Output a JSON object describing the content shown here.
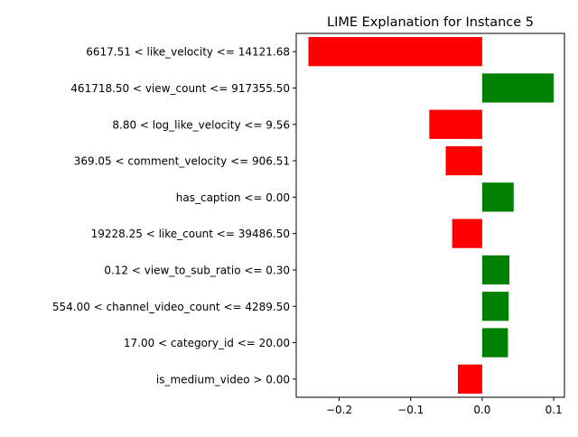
{
  "chart_data": {
    "type": "bar",
    "orientation": "horizontal",
    "title": "LIME Explanation for Instance 5",
    "xlabel": "",
    "ylabel": "",
    "xlim": [
      -0.26,
      0.115
    ],
    "xticks": [
      -0.2,
      -0.1,
      0.0,
      0.1
    ],
    "xtick_labels": [
      "−0.2",
      "−0.1",
      "0.0",
      "0.1"
    ],
    "grid": false,
    "colors": {
      "negative": "#ff0000",
      "positive": "#008000",
      "axis": "#000000",
      "text": "#000000"
    },
    "categories": [
      "6617.51 < like_velocity <= 14121.68",
      "461718.50 < view_count <= 917355.50",
      "8.80 < log_like_velocity <= 9.56",
      "369.05 < comment_velocity <= 906.51",
      "has_caption <= 0.00",
      "19228.25 < like_count <= 39486.50",
      "0.12 < view_to_sub_ratio <= 0.30",
      "554.00 < channel_video_count <= 4289.50",
      "17.00 < category_id <= 20.00",
      "is_medium_video > 0.00"
    ],
    "values": [
      -0.243,
      0.1,
      -0.074,
      -0.051,
      0.044,
      -0.042,
      0.038,
      0.037,
      0.036,
      -0.034
    ]
  }
}
